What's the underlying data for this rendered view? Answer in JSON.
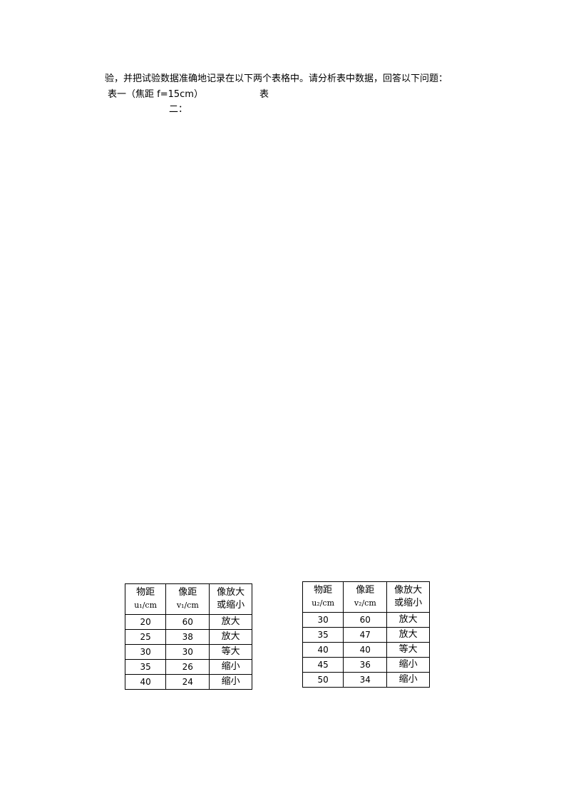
{
  "text": {
    "line1": "验，并把试验数据准确地记录在以下两个表格中。请分析表中数据，回答以下问题：",
    "table1_caption": "表一（焦距 f=15cm）",
    "table2_caption_a": "表",
    "table2_caption_b": "二："
  },
  "table1": {
    "headers": [
      [
        "物距",
        "u₁/cm"
      ],
      [
        "像距",
        "v₁/cm"
      ],
      [
        "像放大",
        "或缩小"
      ]
    ],
    "rows": [
      [
        "20",
        "60",
        "放大"
      ],
      [
        "25",
        "38",
        "放大"
      ],
      [
        "30",
        "30",
        "等大"
      ],
      [
        "35",
        "26",
        "缩小"
      ],
      [
        "40",
        "24",
        "缩小"
      ]
    ]
  },
  "table2": {
    "headers": [
      [
        "物距",
        "u₂/cm"
      ],
      [
        "像距",
        "v₂/cm"
      ],
      [
        "像放大",
        "或缩小"
      ]
    ],
    "rows": [
      [
        "30",
        "60",
        "放大"
      ],
      [
        "35",
        "47",
        "放大"
      ],
      [
        "40",
        "40",
        "等大"
      ],
      [
        "45",
        "36",
        "缩小"
      ],
      [
        "50",
        "34",
        "缩小"
      ]
    ]
  }
}
